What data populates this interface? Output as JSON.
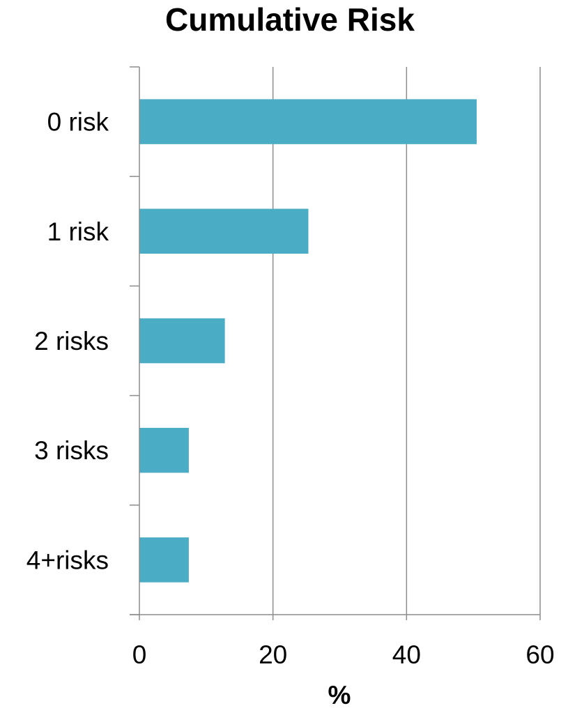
{
  "chart_data": {
    "type": "bar",
    "orientation": "horizontal",
    "title": "Cumulative Risk",
    "xlabel": "%",
    "ylabel": "",
    "categories": [
      "0 risk",
      "1 risk",
      "2 risks",
      "3 risks",
      "4+risks"
    ],
    "values": [
      50.5,
      25.3,
      12.8,
      7.4,
      7.4
    ],
    "xlim": [
      0,
      60
    ],
    "xticks": [
      0,
      20,
      40,
      60
    ],
    "grid": true,
    "legend": "none",
    "bar_color": "#4bacc6"
  }
}
